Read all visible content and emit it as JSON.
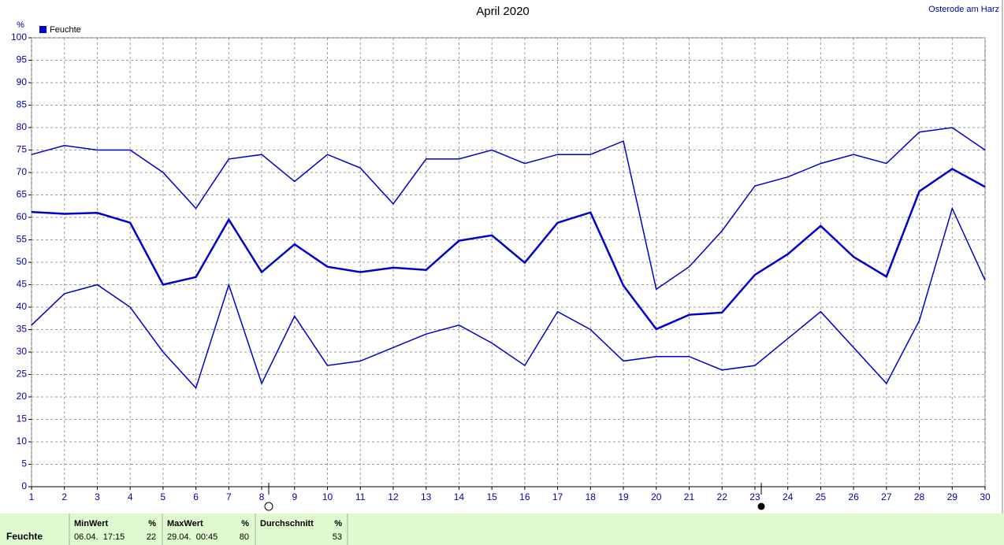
{
  "chart_data": {
    "type": "line",
    "title": "April 2020",
    "site": "Osterode am Harz",
    "unit": "%",
    "legend": "Feuchte",
    "categories": [
      "1",
      "2",
      "3",
      "4",
      "5",
      "6",
      "7",
      "8",
      "9",
      "10",
      "11",
      "12",
      "13",
      "14",
      "15",
      "16",
      "17",
      "18",
      "19",
      "20",
      "21",
      "22",
      "23",
      "24",
      "25",
      "26",
      "27",
      "28",
      "29",
      "30"
    ],
    "series": [
      {
        "color": "#0000cc",
        "width": 1.5,
        "values": [
          74,
          76,
          75,
          75,
          70,
          62,
          73,
          74,
          68,
          74,
          71,
          63,
          73,
          73,
          75,
          72,
          74,
          74,
          77,
          44,
          49,
          57,
          67,
          69,
          72,
          74,
          72,
          79,
          80,
          75
        ]
      },
      {
        "color": "#0000cc",
        "width": 2.5,
        "values": [
          61.2,
          60.8,
          61,
          58.8,
          45,
          46.7,
          59.5,
          47.8,
          54,
          49,
          47.8,
          48.8,
          48.3,
          54.8,
          56,
          49.9,
          58.8,
          61.1,
          44.8,
          35.1,
          38.3,
          38.8,
          47.2,
          51.8,
          58.1,
          51.2,
          46.8,
          65.8,
          70.8,
          66.8
        ]
      },
      {
        "color": "#0000cc",
        "width": 1.5,
        "values": [
          36,
          43,
          45,
          40,
          30,
          22,
          45,
          23,
          38,
          27,
          28,
          31,
          34,
          36,
          32,
          27,
          39,
          35,
          28,
          29,
          29,
          26,
          27,
          33,
          39,
          31,
          23,
          37,
          62,
          46
        ]
      }
    ],
    "ylim": [
      0,
      100
    ],
    "yticks": [
      0,
      5,
      10,
      15,
      20,
      25,
      30,
      35,
      40,
      45,
      50,
      55,
      60,
      65,
      70,
      75,
      80,
      85,
      90,
      95,
      100
    ],
    "grid": true
  },
  "table": {
    "row_label": "Feuchte",
    "columns": [
      {
        "header": "MinWert",
        "unit": "%",
        "time": "06.04.  17:15",
        "value": "22"
      },
      {
        "header": "MaxWert",
        "unit": "%",
        "time": "29.04.  00:45",
        "value": "80"
      },
      {
        "header": "Durchschnitt",
        "unit": "%",
        "time": "",
        "value": "53"
      }
    ]
  }
}
